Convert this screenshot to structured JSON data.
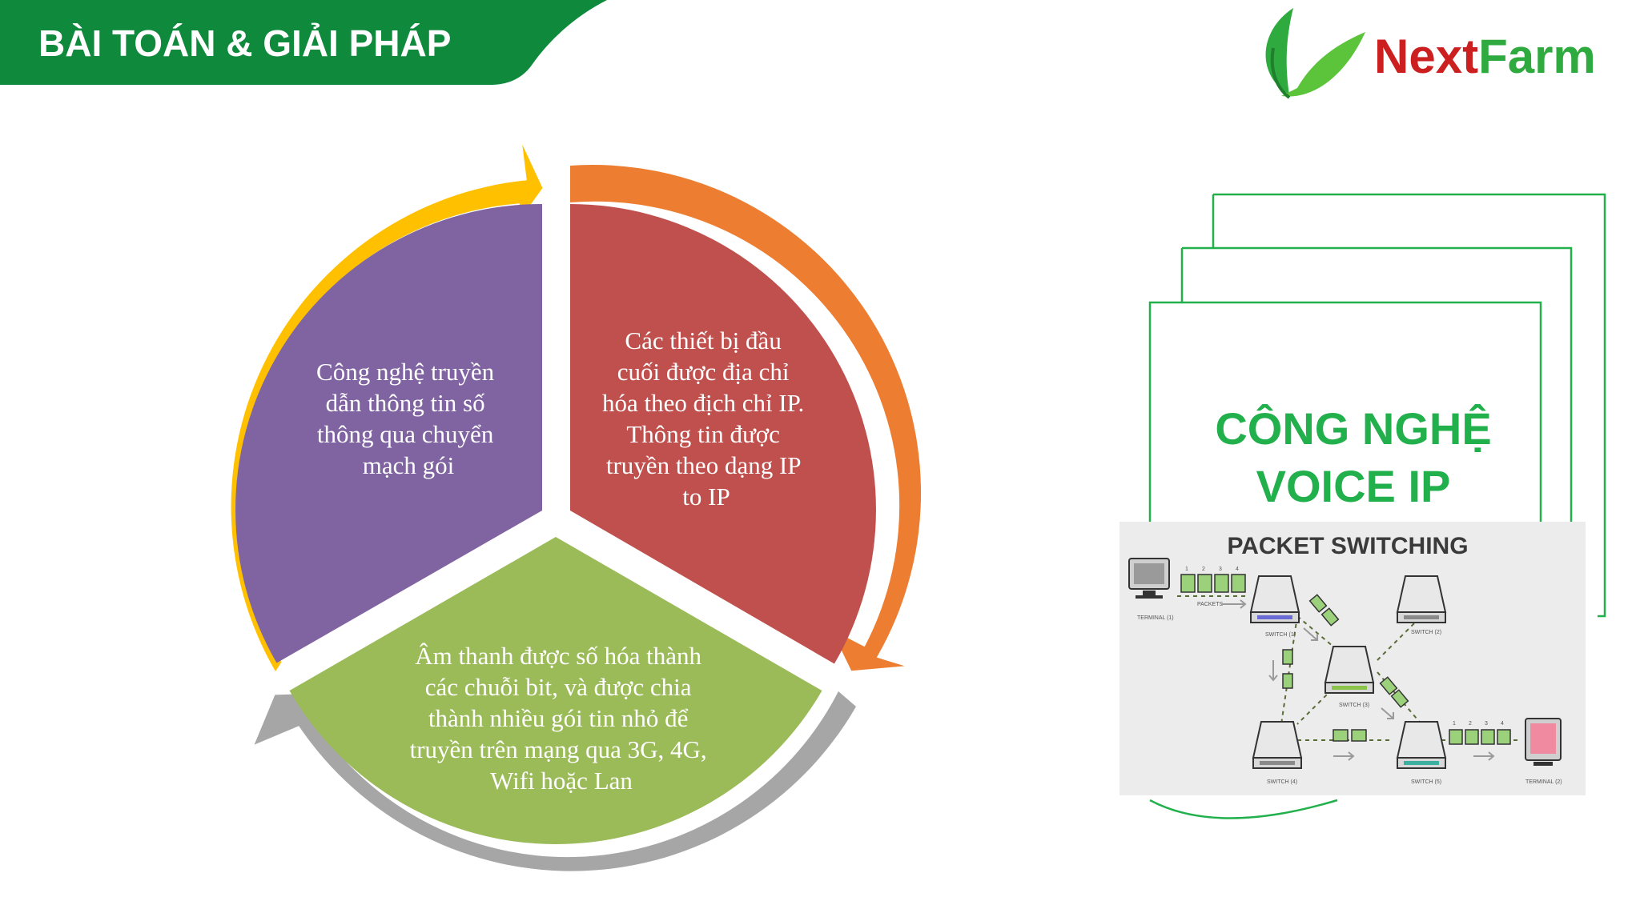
{
  "header": {
    "title": "BÀI TOÁN & GIẢI PHÁP",
    "bg_color": "#0f8a3c"
  },
  "logo": {
    "part1": "Next",
    "part2": "Farm",
    "part1_color": "#cc1f1f",
    "part2_color": "#2eaa3e"
  },
  "cycle": {
    "segments": [
      {
        "color": "#8064a2",
        "arrow_color": "#ffc000",
        "lines": [
          "Công nghệ truyền",
          "dẫn thông tin số",
          "thông qua chuyển",
          "mạch gói"
        ]
      },
      {
        "color": "#c0504d",
        "arrow_color": "#ed7d31",
        "lines": [
          "Các thiết bị đầu",
          "cuối được địa chỉ",
          "hóa theo địch chỉ IP.",
          "Thông tin được",
          "truyền theo dạng IP",
          "to IP"
        ]
      },
      {
        "color": "#9bbb59",
        "arrow_color": "#a6a6a6",
        "lines": [
          "Âm thanh được số hóa thành",
          "các chuỗi bit, và được chia",
          "thành nhiều gói tin nhỏ để",
          "truyền trên mạng qua 3G, 4G,",
          "Wifi hoặc Lan"
        ]
      }
    ]
  },
  "card": {
    "title_line1": "CÔNG NGHỆ",
    "title_line2": "VOICE IP",
    "border_color": "#22b04c"
  },
  "packet_image": {
    "title": "PACKET SWITCHING",
    "packets_label": "PACKETS",
    "terminal1": "TERMINAL (1)",
    "terminal2": "TERMINAL (2)",
    "switches": [
      "SWITCH (1)",
      "SWITCH (2)",
      "SWITCH (3)",
      "SWITCH (4)",
      "SWITCH (5)"
    ],
    "numbers": [
      "1",
      "2",
      "3",
      "4"
    ]
  }
}
